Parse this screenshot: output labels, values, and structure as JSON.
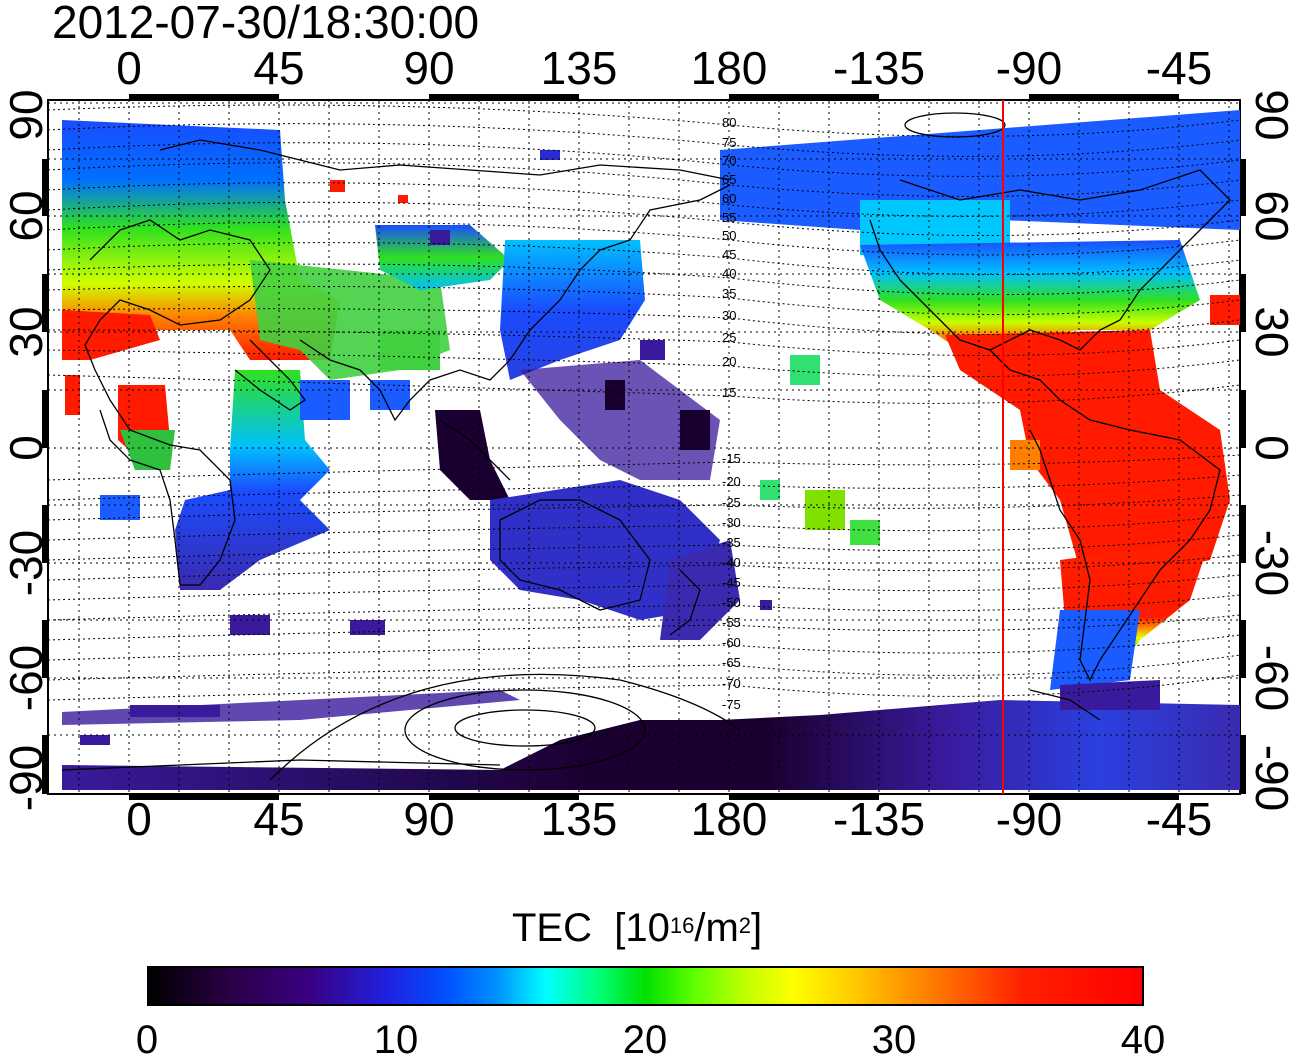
{
  "timestamp": "2012-07-30/18:30:00",
  "top_axis": {
    "ticks": [
      "0",
      "45",
      "90",
      "135",
      "180",
      "-135",
      "-90",
      "-45"
    ]
  },
  "bottom_axis": {
    "ticks": [
      "0",
      "45",
      "90",
      "135",
      "180",
      "-135",
      "-90",
      "-45"
    ]
  },
  "left_axis": {
    "ticks": [
      "90",
      "60",
      "30",
      "0",
      "-30",
      "-60",
      "-90"
    ]
  },
  "right_axis": {
    "ticks": [
      "90",
      "60",
      "30",
      "0",
      "-30",
      "-60",
      "-90"
    ]
  },
  "magnetic_latitude_labels": [
    "80",
    "75",
    "70",
    "65",
    "60",
    "55",
    "50",
    "45",
    "40",
    "35",
    "30",
    "25",
    "20",
    "15",
    "-15",
    "-20",
    "-25",
    "-30",
    "-35",
    "-40",
    "-45",
    "-50",
    "-55",
    "-60",
    "-65",
    "-70",
    "-75"
  ],
  "terminator_line": {
    "longitude": -97,
    "color": "#ff0000"
  },
  "colorbar": {
    "title_main": "TEC",
    "title_unit_prefix": "[10",
    "title_unit_exp": "16",
    "title_unit_mid": "/m",
    "title_unit_exp2": "2",
    "title_unit_suffix": "]",
    "ticks": [
      "0",
      "10",
      "20",
      "30",
      "40"
    ],
    "range": [
      0,
      40
    ]
  },
  "map": {
    "lon_range_shown": [
      -25,
      335
    ],
    "lat_range": [
      -90,
      90
    ],
    "colors": {
      "red": "#ff1a00",
      "orange": "#ff8000",
      "yellow": "#e6ff00",
      "green": "#30e020",
      "cyan": "#00d8ff",
      "blue": "#1a4cff",
      "deep_blue": "#2a2ad0",
      "purple": "#3a1a9c",
      "dark": "#1a0030"
    }
  }
}
